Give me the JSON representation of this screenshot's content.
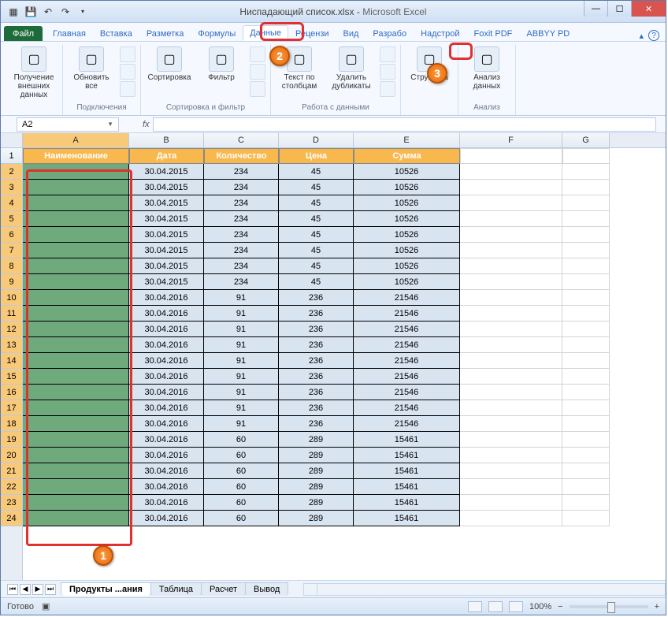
{
  "title": {
    "doc": "Ниспадающий список.xlsx",
    "app": "Microsoft Excel"
  },
  "qat": [
    "excel-icon",
    "save",
    "undo",
    "redo"
  ],
  "tabs": {
    "file": "Файл",
    "items": [
      "Главная",
      "Вставка",
      "Разметка",
      "Формулы",
      "Данные",
      "Рецензи",
      "Вид",
      "Разрабо",
      "Надстрой",
      "Foxit PDF",
      "ABBYY PD"
    ],
    "active_index": 4
  },
  "ribbon": {
    "groups": [
      {
        "name": "get_external",
        "big": [
          {
            "label": "Получение внешних данных"
          }
        ],
        "label": ""
      },
      {
        "name": "connections",
        "big": [
          {
            "label": "Обновить все"
          }
        ],
        "label": "Подключения"
      },
      {
        "name": "sort_filter",
        "big": [
          {
            "label": "Сортировка"
          },
          {
            "label": "Фильтр"
          }
        ],
        "label": "Сортировка и фильтр"
      },
      {
        "name": "data_tools",
        "big": [
          {
            "label": "Текст по столбцам"
          },
          {
            "label": "Удалить дубликаты"
          }
        ],
        "label": "Работа с данными"
      },
      {
        "name": "outline",
        "big": [
          {
            "label": "Структура"
          }
        ],
        "label": ""
      },
      {
        "name": "analysis",
        "big": [
          {
            "label": "Анализ данных"
          }
        ],
        "label": "Анализ"
      }
    ]
  },
  "namebox": "A2",
  "fx_label": "fx",
  "columns": [
    {
      "letter": "A",
      "width": 135,
      "selected": true
    },
    {
      "letter": "B",
      "width": 95,
      "selected": false
    },
    {
      "letter": "C",
      "width": 95,
      "selected": false
    },
    {
      "letter": "D",
      "width": 95,
      "selected": false
    },
    {
      "letter": "E",
      "width": 135,
      "selected": false
    },
    {
      "letter": "F",
      "width": 130,
      "selected": false
    },
    {
      "letter": "G",
      "width": 60,
      "selected": false
    }
  ],
  "headers": [
    "Наименование",
    "Дата",
    "Количество",
    "Цена",
    "Сумма"
  ],
  "data_rows": [
    [
      "",
      "30.04.2015",
      "234",
      "45",
      "10526"
    ],
    [
      "",
      "30.04.2015",
      "234",
      "45",
      "10526"
    ],
    [
      "",
      "30.04.2015",
      "234",
      "45",
      "10526"
    ],
    [
      "",
      "30.04.2015",
      "234",
      "45",
      "10526"
    ],
    [
      "",
      "30.04.2015",
      "234",
      "45",
      "10526"
    ],
    [
      "",
      "30.04.2015",
      "234",
      "45",
      "10526"
    ],
    [
      "",
      "30.04.2015",
      "234",
      "45",
      "10526"
    ],
    [
      "",
      "30.04.2015",
      "234",
      "45",
      "10526"
    ],
    [
      "",
      "30.04.2016",
      "91",
      "236",
      "21546"
    ],
    [
      "",
      "30.04.2016",
      "91",
      "236",
      "21546"
    ],
    [
      "",
      "30.04.2016",
      "91",
      "236",
      "21546"
    ],
    [
      "",
      "30.04.2016",
      "91",
      "236",
      "21546"
    ],
    [
      "",
      "30.04.2016",
      "91",
      "236",
      "21546"
    ],
    [
      "",
      "30.04.2016",
      "91",
      "236",
      "21546"
    ],
    [
      "",
      "30.04.2016",
      "91",
      "236",
      "21546"
    ],
    [
      "",
      "30.04.2016",
      "91",
      "236",
      "21546"
    ],
    [
      "",
      "30.04.2016",
      "91",
      "236",
      "21546"
    ],
    [
      "",
      "30.04.2016",
      "60",
      "289",
      "15461"
    ],
    [
      "",
      "30.04.2016",
      "60",
      "289",
      "15461"
    ],
    [
      "",
      "30.04.2016",
      "60",
      "289",
      "15461"
    ],
    [
      "",
      "30.04.2016",
      "60",
      "289",
      "15461"
    ],
    [
      "",
      "30.04.2016",
      "60",
      "289",
      "15461"
    ],
    [
      "",
      "30.04.2016",
      "60",
      "289",
      "15461"
    ]
  ],
  "colors": {
    "col_a_bg": "#6faa7d",
    "header_bg": "#f8b84e",
    "data_bg": "#d9e4f1",
    "ring": "#e03030",
    "callout": "#f07a20"
  },
  "sheet_tabs": {
    "items": [
      "Продукты ...ания",
      "Таблица",
      "Расчет",
      "Вывод"
    ],
    "active": 0
  },
  "status": {
    "ready": "Готово",
    "zoom": "100%"
  },
  "callouts": {
    "c1": "1",
    "c2": "2",
    "c3": "3"
  }
}
